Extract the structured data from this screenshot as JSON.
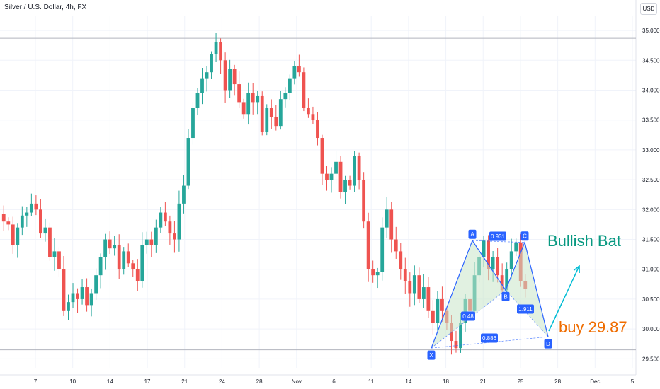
{
  "header": {
    "symbol_line": "Silver / U.S. Dollar, 4h, FX"
  },
  "currency_button": "USD",
  "colors": {
    "up": "#26a69a",
    "down": "#ef5350",
    "pattern": "#2962ff",
    "fill": "#c8e6c9",
    "annotation_title": "#089981",
    "annotation_buy": "#ef6c00",
    "arrow": "#00bcd4"
  },
  "chart_data": {
    "type": "candlestick",
    "title": "Silver / U.S. Dollar, 4h, FX",
    "y_axis": {
      "ticks": [
        "35.000",
        "34.500",
        "34.000",
        "33.500",
        "33.000",
        "32.500",
        "32.000",
        "31.500",
        "31.000",
        "30.500",
        "30.000",
        "29.500"
      ],
      "range": [
        29.35,
        35.25
      ]
    },
    "x_axis": {
      "ticks": [
        "7",
        "10",
        "14",
        "17",
        "21",
        "24",
        "28",
        "Nov",
        "6",
        "11",
        "14",
        "18",
        "21",
        "25",
        "28",
        "Dec",
        "5"
      ]
    },
    "horizontal_lines": [
      34.87,
      29.65
    ],
    "current_price_line": 30.67,
    "harmonic_pattern": {
      "name": "Bullish Bat",
      "points": [
        {
          "label": "X",
          "x": "Nov 14",
          "y": 29.68
        },
        {
          "label": "A",
          "x": "Nov 19",
          "y": 31.48
        },
        {
          "label": "B",
          "x": "Nov 22",
          "y": 30.65
        },
        {
          "label": "C",
          "x": "Nov 25",
          "y": 31.45
        },
        {
          "label": "D",
          "x": "Nov 27",
          "y": 29.87
        }
      ],
      "ratios": [
        "0.48",
        "0.931",
        "1.911",
        "0.886"
      ]
    },
    "annotations": {
      "title": "Bullish Bat",
      "buy": "buy 29.87"
    },
    "price_path": [
      31.93,
      31.8,
      31.75,
      31.4,
      31.7,
      31.9,
      31.95,
      32.1,
      32.0,
      31.6,
      31.7,
      31.2,
      31.3,
      31.0,
      30.3,
      30.45,
      30.6,
      30.5,
      30.7,
      30.4,
      30.6,
      30.9,
      31.2,
      31.5,
      31.35,
      31.4,
      31.0,
      31.3,
      31.1,
      31.0,
      30.8,
      31.4,
      31.5,
      31.4,
      31.7,
      31.95,
      31.8,
      31.6,
      31.5,
      32.1,
      32.4,
      33.2,
      33.7,
      33.95,
      34.2,
      34.3,
      34.6,
      34.8,
      34.5,
      34.0,
      34.35,
      34.1,
      33.8,
      33.6,
      33.95,
      33.8,
      33.9,
      33.3,
      33.7,
      33.55,
      33.4,
      33.85,
      33.95,
      34.2,
      34.4,
      34.3,
      33.7,
      33.6,
      33.5,
      33.2,
      32.6,
      32.5,
      32.6,
      32.8,
      32.3,
      32.5,
      32.4,
      32.9,
      32.5,
      31.8,
      31.0,
      30.9,
      30.95,
      31.7,
      32.0,
      31.5,
      31.3,
      31.0,
      30.8,
      30.6,
      30.9,
      30.5,
      30.7,
      30.3,
      30.1,
      30.5,
      30.3,
      30.1,
      29.8,
      29.68,
      30.1,
      30.5,
      30.3,
      30.9,
      31.2,
      31.48,
      31.0,
      31.2,
      30.9,
      30.65,
      31.0,
      31.3,
      31.45,
      30.8,
      30.67
    ]
  }
}
